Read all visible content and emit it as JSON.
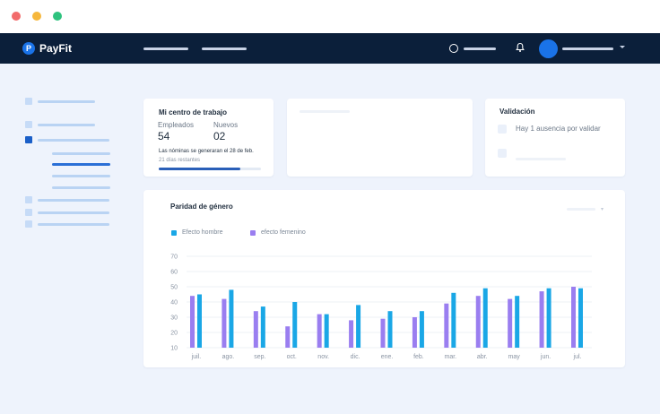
{
  "window": {
    "controls": [
      "close",
      "minimize",
      "maximize"
    ]
  },
  "brand": {
    "name": "PayFit",
    "badge": "P",
    "icon": "payfit-logo-icon"
  },
  "header": {
    "icons": [
      "status-circle-icon",
      "bell-icon",
      "avatar",
      "chevron-down-icon"
    ]
  },
  "workplace": {
    "title": "Mi centro de trabajo",
    "employees_label": "Empleados",
    "employees_value": "54",
    "new_label": "Nuevos",
    "new_value": "02",
    "payroll_note": "Las nóminas se generaran el 28 de feb.",
    "days_left": "21 días restantes",
    "progress": 0.8
  },
  "validation": {
    "title": "Validación",
    "pending_item": "Hay 1 ausencia por validar"
  },
  "gender": {
    "title": "Paridad de género"
  },
  "colors": {
    "men": "#1aa7e6",
    "women": "#9a7ef0",
    "nav": "#0b1f3a",
    "accent": "#1a73e8"
  },
  "chart_data": {
    "type": "bar",
    "title": "Paridad de género",
    "categories": [
      "juil.",
      "ago.",
      "sep.",
      "oct.",
      "nov.",
      "dic.",
      "ene.",
      "feb.",
      "mar.",
      "abr.",
      "may",
      "jun.",
      "jul."
    ],
    "series": [
      {
        "name": "efecto femenino",
        "color": "#9a7ef0",
        "values": [
          44,
          42,
          34,
          24,
          32,
          28,
          29,
          30,
          39,
          44,
          42,
          47,
          50
        ]
      },
      {
        "name": "Efecto hombre",
        "color": "#1aa7e6",
        "values": [
          45,
          48,
          37,
          40,
          32,
          38,
          34,
          34,
          46,
          49,
          44,
          49,
          49
        ]
      }
    ],
    "yticks": [
      10,
      20,
      30,
      40,
      50,
      60,
      70
    ],
    "ylim": [
      10,
      70
    ],
    "grid": true,
    "legend": "top-left"
  }
}
